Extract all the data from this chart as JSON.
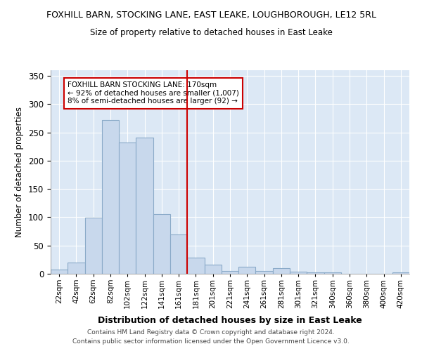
{
  "title": "FOXHILL BARN, STOCKING LANE, EAST LEAKE, LOUGHBOROUGH, LE12 5RL",
  "subtitle": "Size of property relative to detached houses in East Leake",
  "xlabel": "Distribution of detached houses by size in East Leake",
  "ylabel": "Number of detached properties",
  "categories": [
    "22sqm",
    "42sqm",
    "62sqm",
    "82sqm",
    "102sqm",
    "122sqm",
    "141sqm",
    "161sqm",
    "181sqm",
    "201sqm",
    "221sqm",
    "241sqm",
    "261sqm",
    "281sqm",
    "301sqm",
    "321sqm",
    "340sqm",
    "360sqm",
    "380sqm",
    "400sqm",
    "420sqm"
  ],
  "values": [
    7,
    20,
    99,
    272,
    232,
    241,
    105,
    69,
    29,
    16,
    5,
    12,
    5,
    10,
    4,
    2,
    2,
    0,
    0,
    0,
    2
  ],
  "bar_color": "#c8d8ec",
  "bar_edge_color": "#8aaac8",
  "property_line_x": 7.5,
  "property_line_color": "#cc0000",
  "annotation_line1": "FOXHILL BARN STOCKING LANE: 170sqm",
  "annotation_line2": "← 92% of detached houses are smaller (1,007)",
  "annotation_line3": "8% of semi-detached houses are larger (92) →",
  "annotation_box_color": "#cc0000",
  "ylim": [
    0,
    360
  ],
  "yticks": [
    0,
    50,
    100,
    150,
    200,
    250,
    300,
    350
  ],
  "bg_color": "#dce8f5",
  "grid_color": "#ffffff",
  "footer1": "Contains HM Land Registry data © Crown copyright and database right 2024.",
  "footer2": "Contains public sector information licensed under the Open Government Licence v3.0."
}
